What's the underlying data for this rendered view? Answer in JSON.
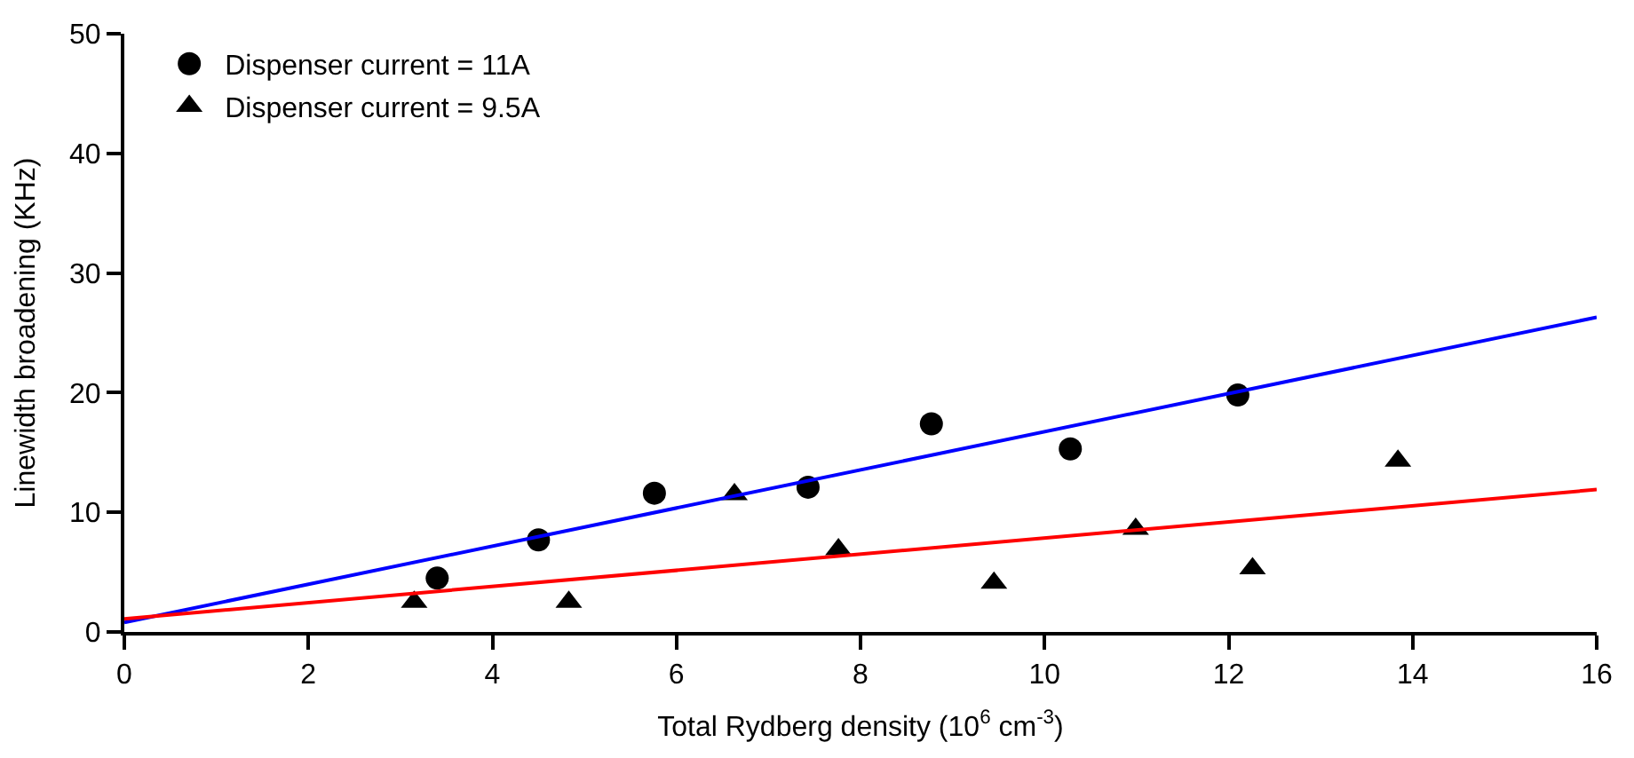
{
  "chart_data": {
    "type": "scatter",
    "xlabel": "Total Rydberg density (10$^{6}$ cm$^{-3}$)",
    "ylabel": "Linewidth broadening (KHz)",
    "xlim": [
      0,
      16
    ],
    "xticks": [
      0,
      2,
      4,
      6,
      8,
      10,
      12,
      14,
      16
    ],
    "ylim": [
      0,
      50
    ],
    "yticks": [
      0,
      10,
      20,
      30,
      40,
      50
    ],
    "legend": "top left",
    "series": [
      {
        "name": "Dispenser current = 11A",
        "marker": "circle",
        "color": "#000000",
        "x": [
          3.4,
          4.5,
          5.76,
          7.43,
          8.77,
          10.28,
          12.1
        ],
        "values": [
          4.5,
          7.7,
          11.6,
          12.1,
          17.4,
          15.3,
          19.8
        ]
      },
      {
        "name": "Dispenser current = 9.5A",
        "marker": "triangle",
        "color": "#000000",
        "x": [
          3.15,
          4.83,
          6.63,
          7.76,
          9.45,
          10.99,
          12.26,
          13.84
        ],
        "values": [
          2.5,
          2.5,
          11.5,
          6.9,
          4.1,
          8.6,
          5.3,
          14.3
        ]
      },
      {
        "type": "line",
        "color": "#0000ff",
        "x": [
          0,
          16
        ],
        "values": [
          0.8,
          26.3
        ]
      },
      {
        "type": "line",
        "color": "#ff0000",
        "x": [
          0,
          16
        ],
        "values": [
          1.1,
          11.9
        ]
      }
    ]
  }
}
